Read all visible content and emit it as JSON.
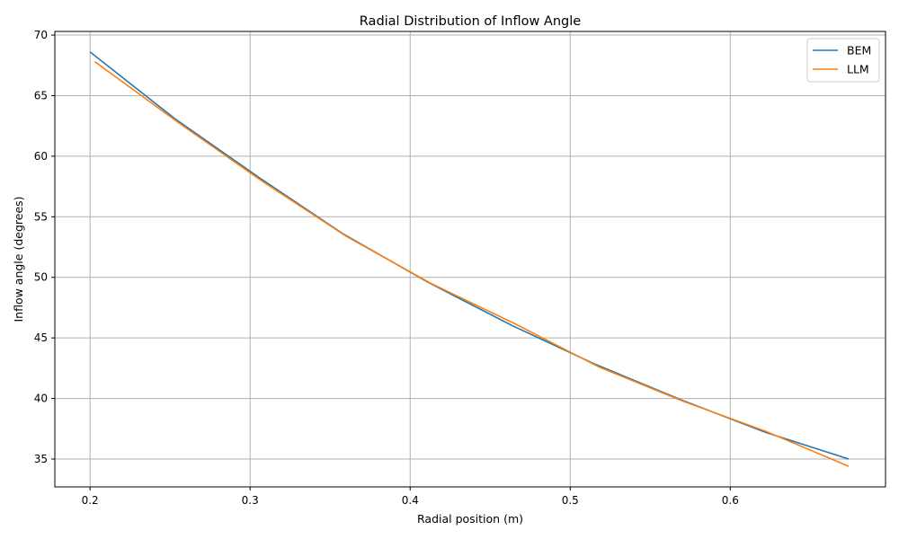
{
  "chart_data": {
    "type": "line",
    "title": "Radial Distribution of Inflow Angle",
    "xlabel": "Radial position (m)",
    "ylabel": "Inflow angle (degrees)",
    "xlim": [
      0.178,
      0.697
    ],
    "ylim": [
      32.7,
      70.3
    ],
    "xticks": [
      0.2,
      0.3,
      0.4,
      0.5,
      0.6
    ],
    "xtick_labels": [
      "0.2",
      "0.3",
      "0.4",
      "0.5",
      "0.6"
    ],
    "yticks": [
      35,
      40,
      45,
      50,
      55,
      60,
      65,
      70
    ],
    "ytick_labels": [
      "35",
      "40",
      "45",
      "50",
      "55",
      "60",
      "65",
      "70"
    ],
    "grid": true,
    "legend_position": "top-right",
    "series": [
      {
        "name": "BEM",
        "color": "#1f77b4",
        "x": [
          0.2,
          0.253,
          0.306,
          0.358,
          0.411,
          0.464,
          0.516,
          0.569,
          0.622,
          0.674
        ],
        "y": [
          68.6,
          63.1,
          58.2,
          53.6,
          49.6,
          46.0,
          42.8,
          39.9,
          37.2,
          35.0
        ]
      },
      {
        "name": "LLM",
        "color": "#ff7f0e",
        "x": [
          0.203,
          0.256,
          0.308,
          0.36,
          0.413,
          0.465,
          0.518,
          0.57,
          0.622,
          0.674
        ],
        "y": [
          67.8,
          62.7,
          57.9,
          53.4,
          49.5,
          46.2,
          42.6,
          39.8,
          37.3,
          34.4
        ]
      }
    ]
  }
}
